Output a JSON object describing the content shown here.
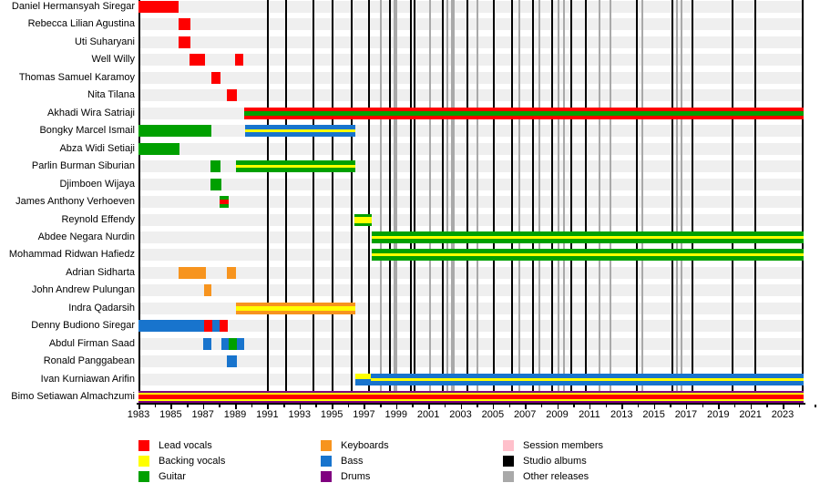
{
  "chart_data": {
    "type": "bar",
    "subtype": "band-members-timeline",
    "title": "",
    "x_axis": {
      "start": 1983,
      "end": 2024.3,
      "tick_labels": [
        "1983",
        "1985",
        "1987",
        "1989",
        "1991",
        "1993",
        "1995",
        "1997",
        "1999",
        "2001",
        "2003",
        "2005",
        "2007",
        "2009",
        "2011",
        "2013",
        "2015",
        "2017",
        "2019",
        "2021",
        "2023"
      ],
      "minor_tick_every_years": 1,
      "grid": "off"
    },
    "role_colors": {
      "lead_vocals": "#fe0000",
      "backing_vocals": "#ffff00",
      "guitar": "#00a000",
      "keyboards": "#f7941e",
      "bass": "#1874cd",
      "drums": "#800080",
      "session": "#ffc0cb",
      "studio_album": "#000000",
      "other_release": "#a9a9a9"
    },
    "members": [
      {
        "name": "Daniel Hermansyah Siregar",
        "segments": [
          {
            "from": 1983,
            "to": 1985.5,
            "stripes": [
              "lead_vocals"
            ],
            "weights": [
              1
            ]
          }
        ]
      },
      {
        "name": "Rebecca Lilian Agustina",
        "segments": [
          {
            "from": 1985.5,
            "to": 1986.2,
            "stripes": [
              "lead_vocals"
            ],
            "weights": [
              1
            ]
          }
        ]
      },
      {
        "name": "Uti Suharyani",
        "segments": [
          {
            "from": 1985.5,
            "to": 1986.2,
            "stripes": [
              "lead_vocals"
            ],
            "weights": [
              1
            ]
          }
        ]
      },
      {
        "name": "Well Willy",
        "segments": [
          {
            "from": 1986.15,
            "to": 1987.15,
            "stripes": [
              "lead_vocals"
            ],
            "weights": [
              1
            ]
          },
          {
            "from": 1989.0,
            "to": 1989.5,
            "stripes": [
              "lead_vocals"
            ],
            "weights": [
              1
            ]
          }
        ]
      },
      {
        "name": "Thomas Samuel Karamoy",
        "segments": [
          {
            "from": 1987.5,
            "to": 1988.1,
            "stripes": [
              "lead_vocals"
            ],
            "weights": [
              1
            ]
          }
        ]
      },
      {
        "name": "Nita Tilana",
        "segments": [
          {
            "from": 1988.5,
            "to": 1989.1,
            "stripes": [
              "lead_vocals"
            ],
            "weights": [
              1
            ]
          }
        ]
      },
      {
        "name": "Akhadi Wira Satriaji",
        "segments": [
          {
            "from": 1989.55,
            "to": 2024.3,
            "stripes": [
              "lead_vocals",
              "guitar",
              "lead_vocals"
            ],
            "weights": [
              4,
              5,
              4
            ]
          }
        ]
      },
      {
        "name": "Bongky Marcel Ismail",
        "segments": [
          {
            "from": 1983,
            "to": 1987.55,
            "stripes": [
              "guitar"
            ],
            "weights": [
              1
            ]
          },
          {
            "from": 1989.6,
            "to": 1996.45,
            "stripes": [
              "bass",
              "backing_vocals",
              "bass"
            ],
            "weights": [
              5,
              3,
              5
            ]
          }
        ]
      },
      {
        "name": "Abza Widi Setiaji",
        "segments": [
          {
            "from": 1983,
            "to": 1985.55,
            "stripes": [
              "guitar"
            ],
            "weights": [
              1
            ]
          }
        ]
      },
      {
        "name": "Parlin Burman Siburian",
        "segments": [
          {
            "from": 1987.45,
            "to": 1988.1,
            "stripes": [
              "guitar"
            ],
            "weights": [
              1
            ]
          },
          {
            "from": 1989.05,
            "to": 1996.45,
            "stripes": [
              "guitar",
              "backing_vocals",
              "guitar"
            ],
            "weights": [
              5,
              3,
              5
            ]
          }
        ]
      },
      {
        "name": "Djimboen Wijaya",
        "segments": [
          {
            "from": 1987.45,
            "to": 1988.15,
            "stripes": [
              "guitar"
            ],
            "weights": [
              1
            ]
          }
        ]
      },
      {
        "name": "James Anthony Verhoeven",
        "segments": [
          {
            "from": 1988.05,
            "to": 1988.6,
            "stripes": [
              "guitar",
              "lead_vocals",
              "guitar"
            ],
            "weights": [
              4,
              5,
              4
            ]
          }
        ]
      },
      {
        "name": "Reynold Effendy",
        "segments": [
          {
            "from": 1996.4,
            "to": 1997.5,
            "stripes": [
              "guitar",
              "backing_vocals",
              "guitar"
            ],
            "weights": [
              3,
              7,
              3
            ]
          }
        ]
      },
      {
        "name": "Abdee Negara Nurdin",
        "segments": [
          {
            "from": 1997.5,
            "to": 2024.3,
            "stripes": [
              "guitar",
              "backing_vocals",
              "guitar"
            ],
            "weights": [
              5,
              3,
              5
            ]
          }
        ]
      },
      {
        "name": "Mohammad Ridwan Hafiedz",
        "segments": [
          {
            "from": 1997.5,
            "to": 2024.3,
            "stripes": [
              "guitar",
              "backing_vocals",
              "guitar"
            ],
            "weights": [
              5,
              3,
              5
            ]
          }
        ]
      },
      {
        "name": "Adrian Sidharta",
        "segments": [
          {
            "from": 1985.5,
            "to": 1987.2,
            "stripes": [
              "keyboards"
            ],
            "weights": [
              1
            ]
          },
          {
            "from": 1988.5,
            "to": 1989.05,
            "stripes": [
              "keyboards"
            ],
            "weights": [
              1
            ]
          }
        ]
      },
      {
        "name": "John Andrew Pulungan",
        "segments": [
          {
            "from": 1987.1,
            "to": 1987.55,
            "stripes": [
              "keyboards"
            ],
            "weights": [
              1
            ]
          }
        ]
      },
      {
        "name": "Indra Qadarsih",
        "segments": [
          {
            "from": 1989.05,
            "to": 1996.45,
            "stripes": [
              "keyboards",
              "backing_vocals",
              "keyboards"
            ],
            "weights": [
              4,
              5,
              4
            ]
          }
        ]
      },
      {
        "name": "Denny Budiono Siregar",
        "segments": [
          {
            "from": 1983,
            "to": 1987.1,
            "stripes": [
              "bass"
            ],
            "weights": [
              1
            ]
          },
          {
            "from": 1987.1,
            "to": 1987.6,
            "stripes": [
              "lead_vocals"
            ],
            "weights": [
              1
            ]
          },
          {
            "from": 1987.6,
            "to": 1988.05,
            "stripes": [
              "bass"
            ],
            "weights": [
              1
            ]
          },
          {
            "from": 1988.05,
            "to": 1988.55,
            "stripes": [
              "lead_vocals"
            ],
            "weights": [
              1
            ]
          }
        ]
      },
      {
        "name": "Abdul Firman Saad",
        "segments": [
          {
            "from": 1987.0,
            "to": 1987.5,
            "stripes": [
              "bass"
            ],
            "weights": [
              1
            ]
          },
          {
            "from": 1988.15,
            "to": 1988.6,
            "stripes": [
              "bass"
            ],
            "weights": [
              1
            ]
          },
          {
            "from": 1988.6,
            "to": 1989.1,
            "stripes": [
              "guitar"
            ],
            "weights": [
              1
            ]
          },
          {
            "from": 1989.1,
            "to": 1989.55,
            "stripes": [
              "bass"
            ],
            "weights": [
              1
            ]
          }
        ]
      },
      {
        "name": "Ronald Panggabean",
        "segments": [
          {
            "from": 1988.5,
            "to": 1989.1,
            "stripes": [
              "bass"
            ],
            "weights": [
              1
            ]
          }
        ]
      },
      {
        "name": "Ivan Kurniawan Arifin",
        "segments": [
          {
            "from": 1996.45,
            "to": 1997.4,
            "stripes": [
              "backing_vocals",
              "bass"
            ],
            "weights": [
              6,
              7
            ]
          },
          {
            "from": 1997.4,
            "to": 2024.3,
            "stripes": [
              "bass",
              "backing_vocals",
              "bass"
            ],
            "weights": [
              5,
              3,
              5
            ]
          }
        ]
      },
      {
        "name": "Bimo Setiawan Almachzumi",
        "segments": [
          {
            "from": 1983,
            "to": 2024.3,
            "stripes": [
              "drums",
              "backing_vocals",
              "lead_vocals",
              "backing_vocals",
              "drums"
            ],
            "weights": [
              2,
              2,
              5,
              2,
              2
            ]
          }
        ]
      }
    ],
    "events": {
      "studio_albums": [
        1991.05,
        1992.15,
        1993.85,
        1995.05,
        1996.25,
        1997.3,
        1998.6,
        1999.9,
        2000.15,
        2001.9,
        2003.4,
        2005.05,
        2006.2,
        2007.5,
        2008.7,
        2009.85,
        2010.8,
        2013.95,
        2016.15,
        2017.4,
        2019.9,
        2021.3
      ],
      "other_releases": [
        {
          "year": 1998.05,
          "width": 2
        },
        {
          "year": 1998.95,
          "width": 4
        },
        {
          "year": 2001.1,
          "width": 2
        },
        {
          "year": 2002.2,
          "width": 2
        },
        {
          "year": 2002.5,
          "width": 4
        },
        {
          "year": 2004.05,
          "width": 2
        },
        {
          "year": 2006.65,
          "width": 2
        },
        {
          "year": 2007.9,
          "width": 2
        },
        {
          "year": 2009.1,
          "width": 2
        },
        {
          "year": 2009.4,
          "width": 2
        },
        {
          "year": 2011.6,
          "width": 2
        },
        {
          "year": 2012.3,
          "width": 2
        },
        {
          "year": 2014.3,
          "width": 2
        },
        {
          "year": 2016.45,
          "width": 2
        },
        {
          "year": 2016.7,
          "width": 2
        }
      ]
    }
  },
  "legend": {
    "columns": [
      [
        {
          "label": "Lead vocals",
          "color": "#fe0000"
        },
        {
          "label": "Backing vocals",
          "color": "#ffff00"
        },
        {
          "label": "Guitar",
          "color": "#00a000"
        }
      ],
      [
        {
          "label": "Keyboards",
          "color": "#f7941e"
        },
        {
          "label": "Bass",
          "color": "#1874cd"
        },
        {
          "label": "Drums",
          "color": "#800080"
        }
      ],
      [
        {
          "label": "Session members",
          "color": "#ffc0cb"
        },
        {
          "label": "Studio albums",
          "color": "#000000"
        },
        {
          "label": "Other releases",
          "color": "#a9a9a9"
        }
      ]
    ]
  }
}
